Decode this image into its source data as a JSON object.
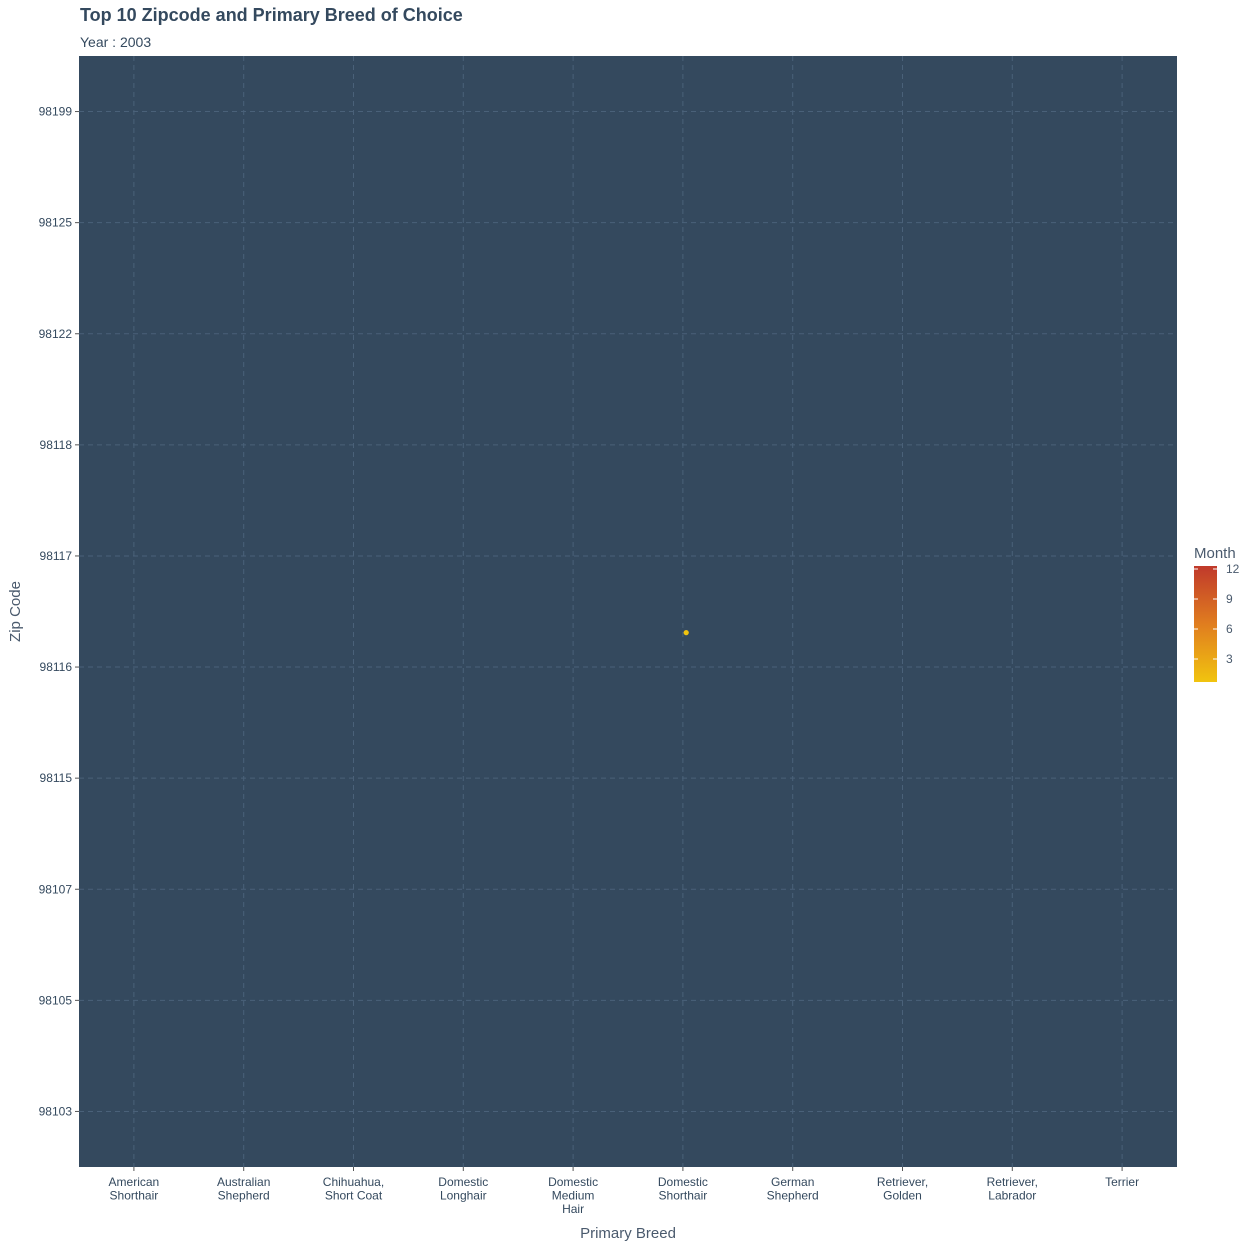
{
  "title": "Top 10 Zipcode and Primary Breed of Choice",
  "subtitle": "Year : 2003",
  "colors": {
    "panel_background": "#34495e",
    "grid": "#4a6179",
    "point_low": "#f1c40f",
    "point_high": "#c0392b",
    "text": "#34495e"
  },
  "chart_data": {
    "type": "scatter",
    "xlabel": "Primary Breed",
    "ylabel": "Zip Code",
    "x_categories": [
      "American\nShorthair",
      "Australian\nShepherd",
      "Chihuahua,\nShort Coat",
      "Domestic\nLonghair",
      "Domestic\nMedium\nHair",
      "Domestic\nShorthair",
      "German\nShepherd",
      "Retriever,\nGolden",
      "Retriever,\nLabrador",
      "Terrier"
    ],
    "y_categories": [
      "98103",
      "98105",
      "98107",
      "98115",
      "98116",
      "98117",
      "98118",
      "98122",
      "98125",
      "98199"
    ],
    "points": [
      {
        "x": "Domestic\nShorthair",
        "y": "98116",
        "month": 1
      }
    ],
    "grid": true,
    "legend": {
      "title": "Month",
      "ticks": [
        3,
        6,
        9,
        12
      ],
      "range": [
        1,
        12
      ],
      "placement": "right"
    }
  }
}
